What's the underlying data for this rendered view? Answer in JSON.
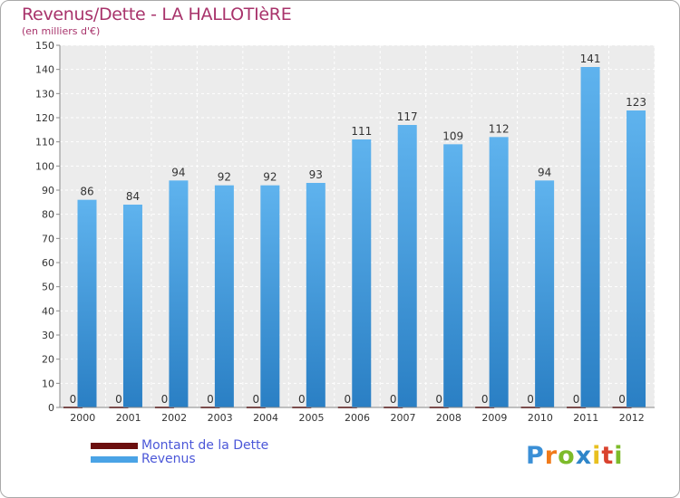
{
  "header": {
    "title": "Revenus/Dette - LA HALLOTIèRE",
    "unit_label": "(en milliers d'€)"
  },
  "chart_data": {
    "type": "bar",
    "title": "Revenus/Dette - LA HALLOTIèRE",
    "ylabel": "(en milliers d'€)",
    "xlabel": "",
    "categories": [
      "2000",
      "2001",
      "2002",
      "2003",
      "2004",
      "2005",
      "2006",
      "2007",
      "2008",
      "2009",
      "2010",
      "2011",
      "2012"
    ],
    "series": [
      {
        "name": "Montant de la Dette",
        "color": "#6b0f0f",
        "values": [
          0,
          0,
          0,
          0,
          0,
          0,
          0,
          0,
          0,
          0,
          0,
          0,
          0
        ]
      },
      {
        "name": "Revenus",
        "color": "#4aa3e6",
        "values": [
          86,
          84,
          94,
          92,
          92,
          93,
          111,
          117,
          109,
          112,
          94,
          141,
          123
        ]
      }
    ],
    "ylim": [
      0,
      150
    ],
    "yticks": [
      0,
      10,
      20,
      30,
      40,
      50,
      60,
      70,
      80,
      90,
      100,
      110,
      120,
      130,
      140,
      150
    ],
    "grid": true,
    "legend_position": "bottom-left"
  },
  "legend": {
    "items": [
      {
        "label": "Montant de la Dette",
        "color": "#6b0f0f"
      },
      {
        "label": "Revenus",
        "color": "#4aa3e6"
      }
    ]
  },
  "logo": {
    "letters": [
      "P",
      "r",
      "o",
      "x",
      "i",
      "t",
      "i"
    ],
    "colors": [
      "#3a8fd6",
      "#f07a1a",
      "#7dbb2a",
      "#2f86c9",
      "#e8c020",
      "#d9422e",
      "#7dbb2a"
    ]
  }
}
